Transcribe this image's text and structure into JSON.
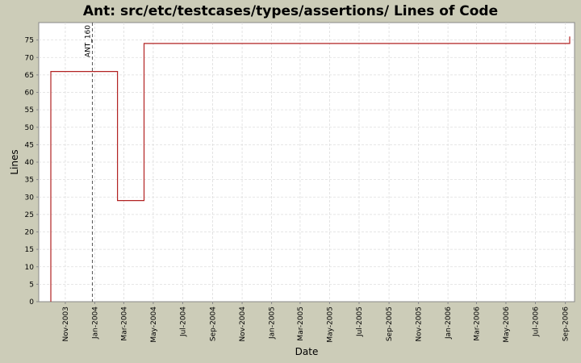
{
  "chart_data": {
    "type": "line",
    "title": "Ant: src/etc/testcases/types/assertions/ Lines of Code",
    "xlabel": "Date",
    "ylabel": "Lines",
    "ylim": [
      0,
      80
    ],
    "yticks": [
      0,
      5,
      10,
      15,
      20,
      25,
      30,
      35,
      40,
      45,
      50,
      55,
      60,
      65,
      70,
      75
    ],
    "xlim": [
      "2003-09-07",
      "2006-09-20"
    ],
    "xticks": [
      "2003-11-01",
      "2004-01-01",
      "2004-03-01",
      "2004-05-01",
      "2004-07-01",
      "2004-09-01",
      "2004-11-01",
      "2005-01-01",
      "2005-03-01",
      "2005-05-01",
      "2005-07-01",
      "2005-09-01",
      "2005-11-01",
      "2006-01-01",
      "2006-03-01",
      "2006-05-01",
      "2006-07-01",
      "2006-09-01"
    ],
    "xtick_labels": [
      "Nov-2003",
      "Jan-2004",
      "Mar-2004",
      "May-2004",
      "Jul-2004",
      "Sep-2004",
      "Nov-2004",
      "Jan-2005",
      "Mar-2005",
      "May-2005",
      "Jul-2005",
      "Sep-2005",
      "Nov-2005",
      "Jan-2006",
      "Mar-2006",
      "May-2006",
      "Jul-2006",
      "Sep-2006"
    ],
    "grid": true,
    "series": [
      {
        "color": "#b22222",
        "step": true,
        "x": [
          "2003-10-02",
          "2003-10-02",
          "2004-02-17",
          "2004-04-12",
          "2006-09-10",
          "2006-09-10"
        ],
        "y": [
          0,
          66,
          29,
          74,
          74,
          76
        ]
      }
    ],
    "markers": [
      {
        "x": "2003-12-27",
        "label": "ANT_160"
      }
    ]
  }
}
